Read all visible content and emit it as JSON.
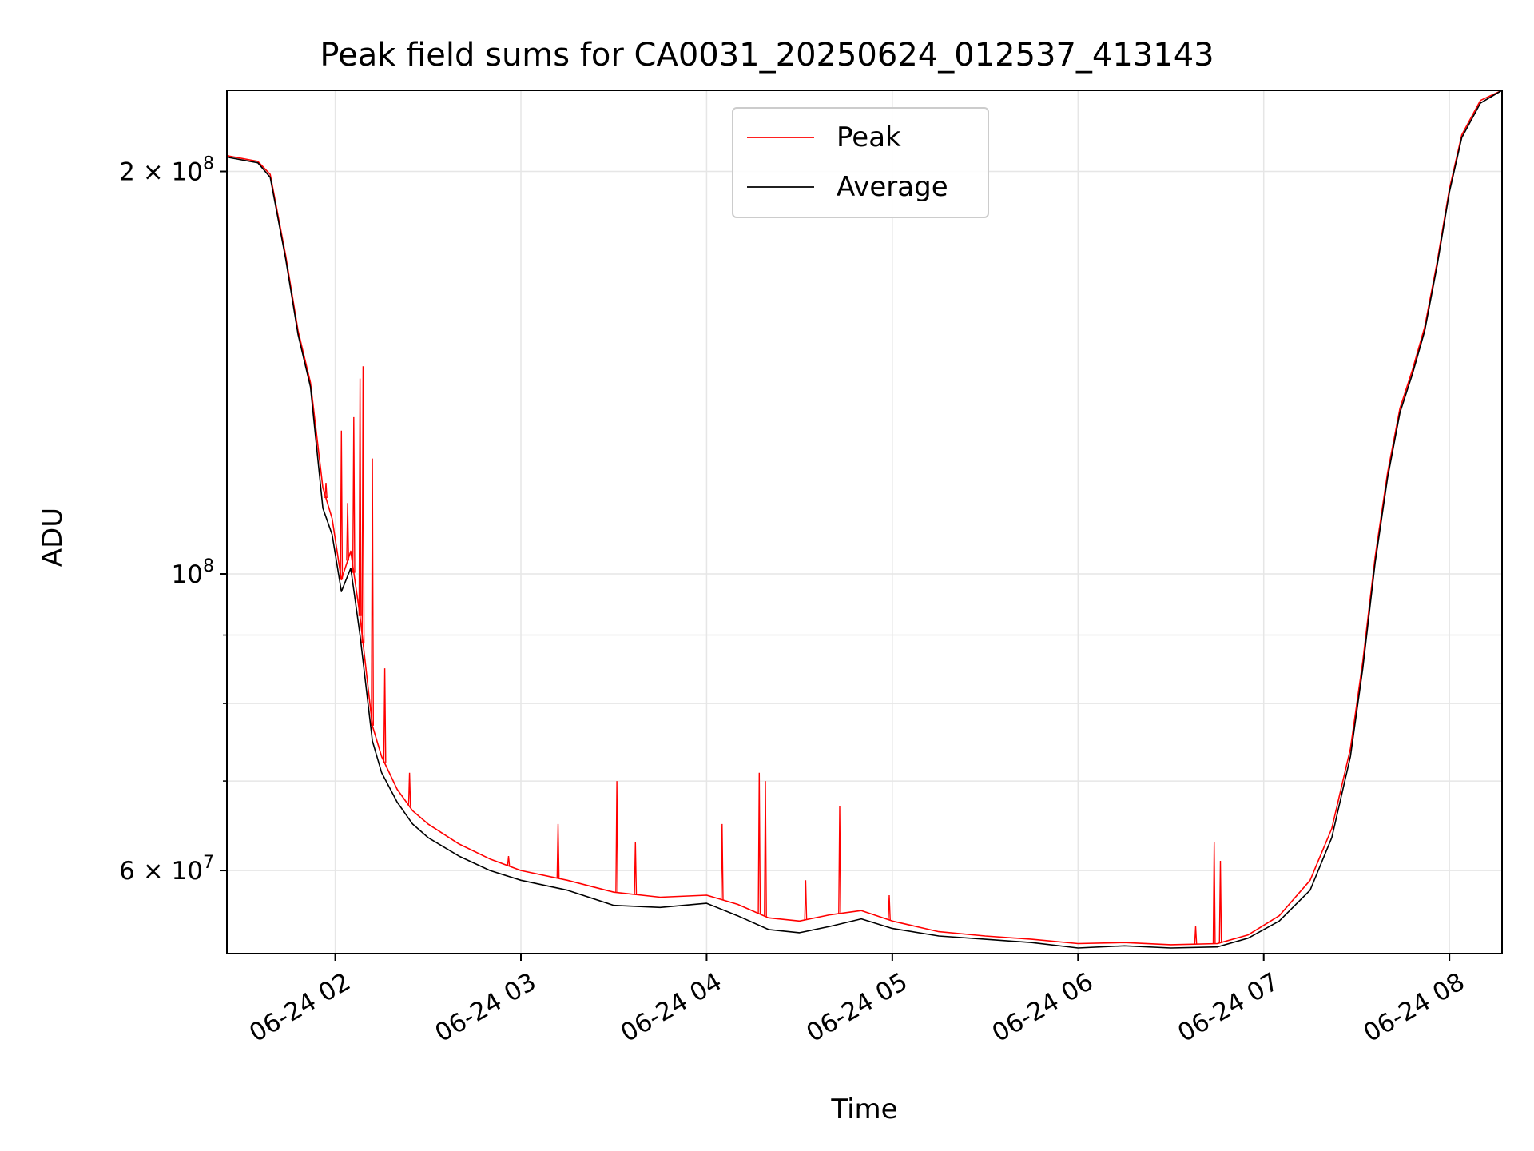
{
  "chart_data": {
    "type": "line",
    "title": "Peak field sums for CA0031_20250624_012537_413143",
    "xlabel": "Time",
    "ylabel": "ADU",
    "x_axis": {
      "unit": "time of day (hours)",
      "range": [
        "06-24 01:25",
        "06-24 08:17"
      ],
      "tick_labels": [
        "06-24 02",
        "06-24 03",
        "06-24 04",
        "06-24 05",
        "06-24 06",
        "06-24 07",
        "06-24 08"
      ]
    },
    "y_axis": {
      "scale": "log",
      "range": [
        52000000,
        230000000
      ],
      "major_tick_labels": [
        {
          "value": 200000000,
          "label_base": "2 × 10",
          "label_exp": "8"
        },
        {
          "value": 100000000,
          "label_base": "10",
          "label_exp": "8"
        },
        {
          "value": 60000000,
          "label_base": "6 × 10",
          "label_exp": "7"
        }
      ],
      "minor_ticks": [
        60000000,
        70000000,
        80000000,
        90000000
      ]
    },
    "grid": true,
    "legend": {
      "position": "top-center",
      "entries": [
        "Peak",
        "Average"
      ]
    },
    "colors": {
      "Peak": "#ff0000",
      "Average": "#000000"
    },
    "series": [
      {
        "name": "Average",
        "x": [
          "06-24 01:25",
          "06-24 01:35",
          "06-24 01:39",
          "06-24 01:44",
          "06-24 01:48",
          "06-24 01:52",
          "06-24 01:56",
          "06-24 01:59",
          "06-24 02:02",
          "06-24 02:05",
          "06-24 02:08",
          "06-24 02:12",
          "06-24 02:15",
          "06-24 02:20",
          "06-24 02:25",
          "06-24 02:30",
          "06-24 02:40",
          "06-24 02:50",
          "06-24 03:00",
          "06-24 03:15",
          "06-24 03:30",
          "06-24 03:45",
          "06-24 04:00",
          "06-24 04:10",
          "06-24 04:20",
          "06-24 04:30",
          "06-24 04:40",
          "06-24 04:50",
          "06-24 05:00",
          "06-24 05:15",
          "06-24 05:30",
          "06-24 05:45",
          "06-24 06:00",
          "06-24 06:15",
          "06-24 06:30",
          "06-24 06:45",
          "06-24 06:55",
          "06-24 07:05",
          "06-24 07:15",
          "06-24 07:22",
          "06-24 07:28",
          "06-24 07:32",
          "06-24 07:36",
          "06-24 07:40",
          "06-24 07:44",
          "06-24 07:48",
          "06-24 07:52",
          "06-24 07:56",
          "06-24 08:00",
          "06-24 08:04",
          "06-24 08:10",
          "06-24 08:17"
        ],
        "values": [
          205000000,
          203000000,
          198000000,
          172000000,
          151000000,
          138000000,
          112000000,
          107000000,
          97000000,
          101000000,
          90000000,
          75000000,
          71000000,
          67500000,
          65000000,
          63500000,
          61500000,
          60000000,
          59000000,
          58000000,
          56500000,
          56300000,
          56700000,
          55500000,
          54200000,
          53900000,
          54500000,
          55200000,
          54300000,
          53600000,
          53300000,
          53000000,
          52500000,
          52700000,
          52500000,
          52600000,
          53400000,
          55000000,
          58000000,
          63500000,
          73000000,
          85000000,
          102000000,
          118000000,
          132000000,
          141000000,
          152000000,
          170000000,
          193000000,
          212000000,
          225000000,
          230000000
        ]
      },
      {
        "name": "Peak",
        "x": [
          "06-24 01:25",
          "06-24 01:35",
          "06-24 01:39",
          "06-24 01:44",
          "06-24 01:48",
          "06-24 01:52",
          "06-24 01:56",
          "06-24 01:59",
          "06-24 02:02",
          "06-24 02:05",
          "06-24 02:08",
          "06-24 02:12",
          "06-24 02:15",
          "06-24 02:20",
          "06-24 02:25",
          "06-24 02:30",
          "06-24 02:40",
          "06-24 02:50",
          "06-24 03:00",
          "06-24 03:15",
          "06-24 03:30",
          "06-24 03:45",
          "06-24 04:00",
          "06-24 04:10",
          "06-24 04:20",
          "06-24 04:30",
          "06-24 04:40",
          "06-24 04:50",
          "06-24 05:00",
          "06-24 05:15",
          "06-24 05:30",
          "06-24 05:45",
          "06-24 06:00",
          "06-24 06:15",
          "06-24 06:30",
          "06-24 06:45",
          "06-24 06:55",
          "06-24 07:05",
          "06-24 07:15",
          "06-24 07:22",
          "06-24 07:28",
          "06-24 07:32",
          "06-24 07:36",
          "06-24 07:40",
          "06-24 07:44",
          "06-24 07:48",
          "06-24 07:52",
          "06-24 07:56",
          "06-24 08:00",
          "06-24 08:04",
          "06-24 08:10",
          "06-24 08:17"
        ],
        "values": [
          205500000,
          203500000,
          199000000,
          173000000,
          152000000,
          139000000,
          116000000,
          110000000,
          99000000,
          104000000,
          93000000,
          77000000,
          73000000,
          69000000,
          66500000,
          65000000,
          62800000,
          61200000,
          60000000,
          59000000,
          57800000,
          57300000,
          57500000,
          56600000,
          55300000,
          55000000,
          55600000,
          56000000,
          55000000,
          54000000,
          53600000,
          53300000,
          52900000,
          53000000,
          52800000,
          52900000,
          53700000,
          55500000,
          59000000,
          64500000,
          74000000,
          86000000,
          103000000,
          119000000,
          133000000,
          142000000,
          153000000,
          171000000,
          194000000,
          213000000,
          226000000,
          230000000
        ],
        "spikes": [
          {
            "x": "06-24 01:57",
            "value": 117000000
          },
          {
            "x": "06-24 02:02",
            "value": 128000000
          },
          {
            "x": "06-24 02:04",
            "value": 113000000
          },
          {
            "x": "06-24 02:06",
            "value": 131000000
          },
          {
            "x": "06-24 02:08",
            "value": 140000000
          },
          {
            "x": "06-24 02:09",
            "value": 143000000
          },
          {
            "x": "06-24 02:12",
            "value": 122000000
          },
          {
            "x": "06-24 02:16",
            "value": 85000000
          },
          {
            "x": "06-24 02:24",
            "value": 71000000
          },
          {
            "x": "06-24 02:56",
            "value": 61500000
          },
          {
            "x": "06-24 03:12",
            "value": 65000000
          },
          {
            "x": "06-24 03:31",
            "value": 70000000
          },
          {
            "x": "06-24 03:37",
            "value": 63000000
          },
          {
            "x": "06-24 04:05",
            "value": 65000000
          },
          {
            "x": "06-24 04:17",
            "value": 71000000
          },
          {
            "x": "06-24 04:19",
            "value": 70000000
          },
          {
            "x": "06-24 04:32",
            "value": 59000000
          },
          {
            "x": "06-24 04:43",
            "value": 67000000
          },
          {
            "x": "06-24 04:59",
            "value": 57500000
          },
          {
            "x": "06-24 06:38",
            "value": 54500000
          },
          {
            "x": "06-24 06:44",
            "value": 63000000
          },
          {
            "x": "06-24 06:46",
            "value": 61000000
          }
        ]
      }
    ]
  }
}
